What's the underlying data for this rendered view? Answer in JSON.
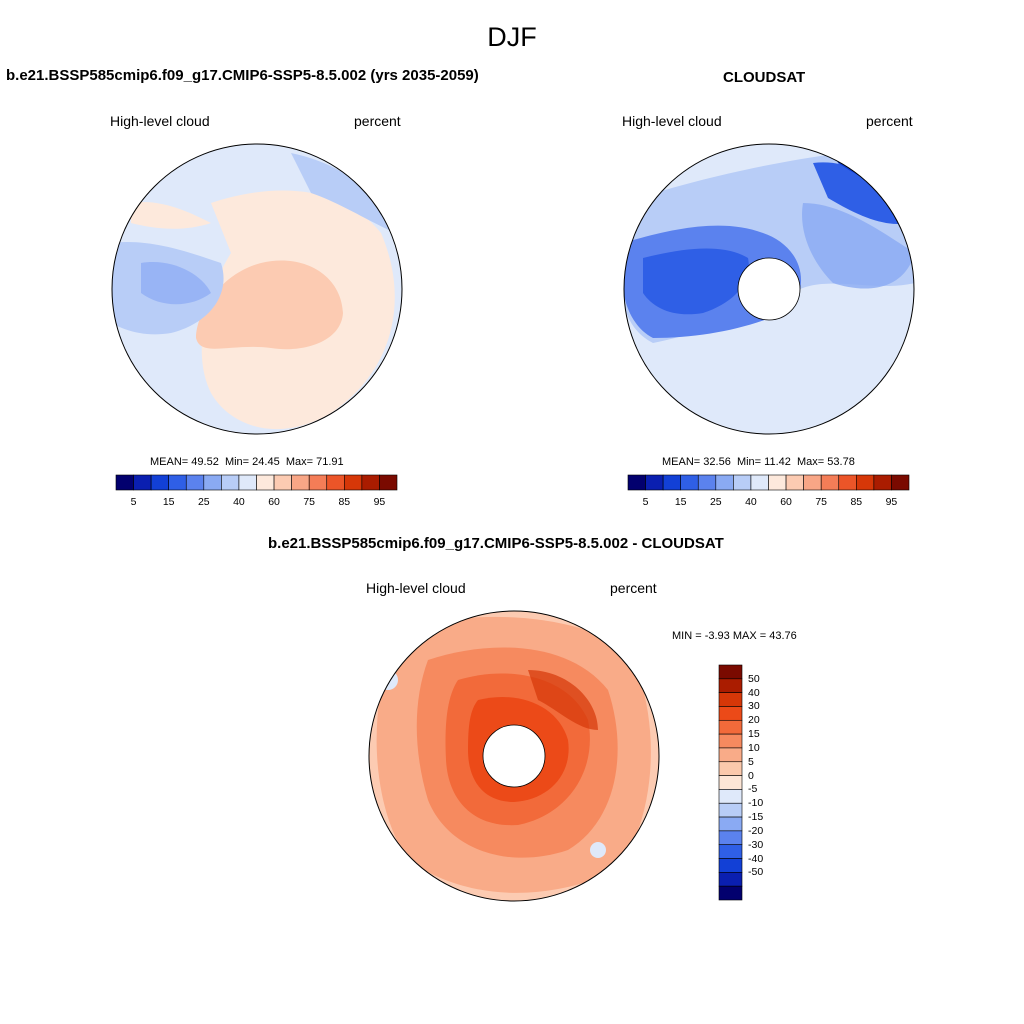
{
  "title": "DJF",
  "panels": [
    {
      "id": "model",
      "title": "b.e21.BSSP585cmip6.f09_g17.CMIP6-SSP5-8.5.002 (yrs 2035-2059)",
      "variable": "High-level cloud",
      "units": "percent",
      "stats": {
        "mean_label": "MEAN=",
        "mean": "49.52",
        "min_label": "Min=",
        "min": "24.45",
        "max_label": "Max=",
        "max": "71.91"
      }
    },
    {
      "id": "obs",
      "title": "CLOUDSAT",
      "variable": "High-level cloud",
      "units": "percent",
      "stats": {
        "mean_label": "MEAN=",
        "mean": "32.56",
        "min_label": "Min=",
        "min": "11.42",
        "max_label": "Max=",
        "max": "53.78"
      }
    },
    {
      "id": "diff",
      "title": "b.e21.BSSP585cmip6.f09_g17.CMIP6-SSP5-8.5.002 - CLOUDSAT",
      "variable": "High-level cloud",
      "units": "percent",
      "stats": {
        "min_label": "MIN =",
        "min": "-3.93",
        "max_label": "MAX =",
        "max": "43.76"
      }
    }
  ],
  "colorbar_abs": {
    "colors": [
      "#02006e",
      "#0a1fb0",
      "#1240d6",
      "#2f5fe6",
      "#5b82ee",
      "#8aaaf3",
      "#b8cdf7",
      "#dfe9fa",
      "#fde9dc",
      "#fccbb2",
      "#f8a686",
      "#f47d57",
      "#ec5528",
      "#d63708",
      "#aa1c00",
      "#7a0a00"
    ],
    "tick_labels": [
      "5",
      "15",
      "25",
      "40",
      "60",
      "75",
      "85",
      "95"
    ]
  },
  "colorbar_diff": {
    "colors": [
      "#7a0a00",
      "#aa1c00",
      "#d63708",
      "#ec4a18",
      "#f26a3a",
      "#f68a5f",
      "#f9ab88",
      "#fbc9ac",
      "#fde6d6",
      "#dfe9fa",
      "#b8cdf7",
      "#8aaaf3",
      "#5b82ee",
      "#2f5fe6",
      "#1240d6",
      "#0a1fb0",
      "#02006e"
    ],
    "tick_labels": [
      "50",
      "40",
      "30",
      "20",
      "15",
      "10",
      "5",
      "0",
      "-5",
      "-10",
      "-15",
      "-20",
      "-30",
      "-40",
      "-50"
    ]
  }
}
